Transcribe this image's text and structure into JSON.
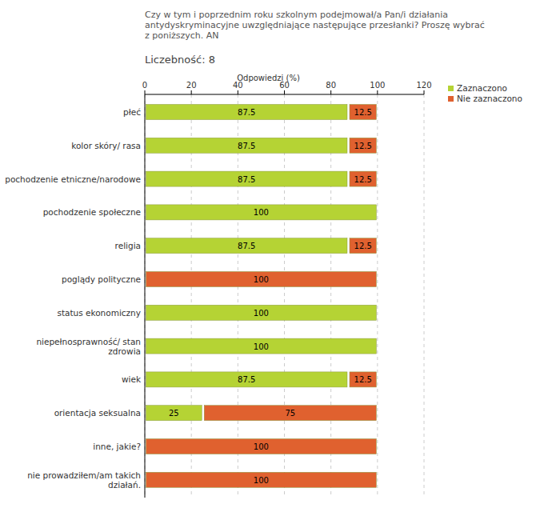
{
  "chart_data": {
    "type": "bar",
    "orientation": "horizontal",
    "stacked": true,
    "data_labels": true,
    "grid": true,
    "legend": "right",
    "title": "Czy w tym i poprzednim roku szkolnym podejmował/a Pan/i działania antydyskryminacyjne uwzględniające następujące przesłanki? Proszę wybrać z poniższych. AN",
    "subtitle": "Liczebność: 8",
    "xlabel": "Odpowiedzi (%)",
    "xlim": [
      0,
      120
    ],
    "xticks": [
      0,
      20,
      40,
      60,
      80,
      100,
      120
    ],
    "categories": [
      "płeć",
      "kolor skóry/ rasa",
      "pochodzenie etniczne/narodowe",
      "pochodzenie społeczne",
      "religia",
      "poglądy polityczne",
      "status ekonomiczny",
      "niepełnosprawność/ stan zdrowia",
      "wiek",
      "orientacja seksualna",
      "inne, jakie?",
      "nie prowadziłem/am takich działań."
    ],
    "series": [
      {
        "name": "Zaznaczono",
        "color": "#b5d334",
        "values": [
          87.5,
          87.5,
          87.5,
          100,
          87.5,
          0,
          100,
          100,
          87.5,
          25,
          0,
          0
        ]
      },
      {
        "name": "Nie zaznaczono",
        "color": "#e0612f",
        "values": [
          12.5,
          12.5,
          12.5,
          0,
          12.5,
          100,
          0,
          0,
          12.5,
          75,
          100,
          100
        ]
      }
    ]
  }
}
